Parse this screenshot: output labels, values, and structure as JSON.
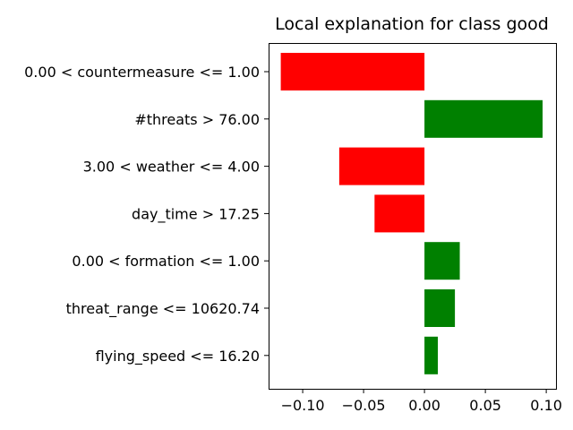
{
  "chart_data": {
    "type": "bar",
    "orientation": "horizontal",
    "title": "Local explanation for class good",
    "xlabel": "",
    "ylabel": "",
    "categories": [
      "0.00 < countermeasure <= 1.00",
      "#threats > 76.00",
      "3.00 < weather <= 4.00",
      "day_time > 17.25",
      "0.00 < formation <= 1.00",
      "threat_range <= 10620.74",
      "flying_speed <= 16.20"
    ],
    "values": [
      -0.118,
      0.097,
      -0.07,
      -0.041,
      0.029,
      0.025,
      0.011
    ],
    "xlim": [
      -0.128,
      0.108
    ],
    "xticks": [
      -0.1,
      -0.05,
      0.0,
      0.05,
      0.1
    ],
    "xtick_labels": [
      "−0.10",
      "−0.05",
      "0.00",
      "0.05",
      "0.10"
    ],
    "grid": false,
    "colors": {
      "positive": "#008000",
      "negative": "#ff0000"
    }
  }
}
